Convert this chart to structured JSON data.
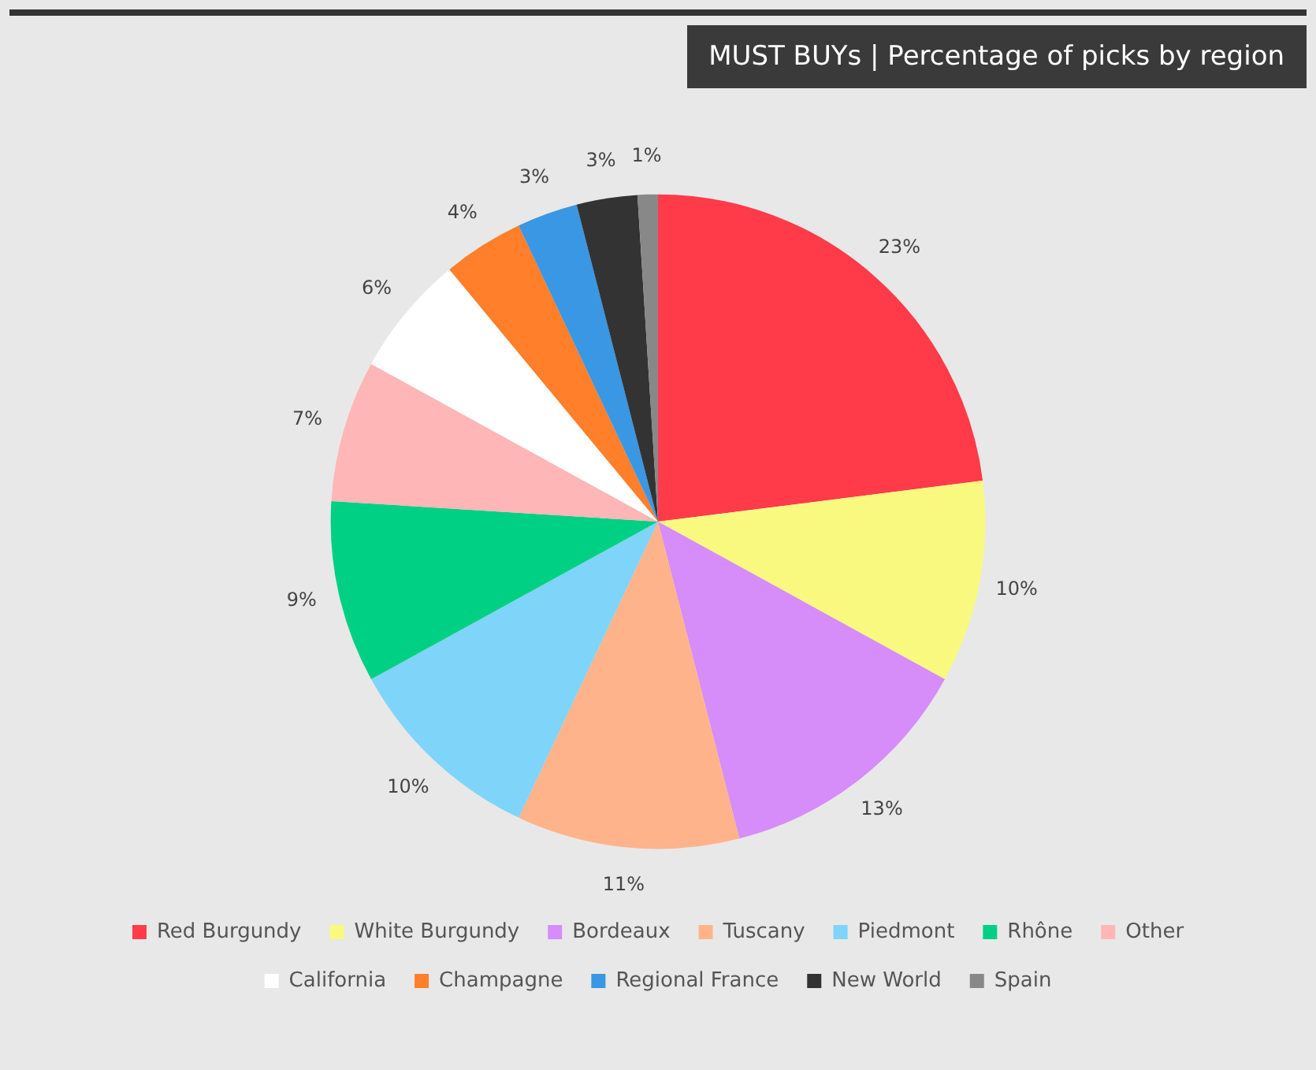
{
  "chart_data": {
    "type": "pie",
    "title": "MUST BUYs | Percentage of picks by region",
    "categories": [
      "Red Burgundy",
      "White Burgundy",
      "Bordeaux",
      "Tuscany",
      "Piedmont",
      "Rhône",
      "Other",
      "California",
      "Champagne",
      "Regional France",
      "New World",
      "Spain"
    ],
    "values": [
      23,
      10,
      13,
      11,
      10,
      9,
      7,
      6,
      4,
      3,
      3,
      1
    ],
    "colors": [
      "#ff3b4a",
      "#f9f97f",
      "#d68cf9",
      "#ffb38a",
      "#7fd4f9",
      "#00d084",
      "#ffb6b6",
      "#ffffff",
      "#ff7f2a",
      "#3a97e3",
      "#333333",
      "#888888"
    ],
    "value_labels": [
      "23%",
      "10%",
      "13%",
      "11%",
      "10%",
      "9%",
      "7%",
      "6%",
      "4%",
      "3%",
      "3%",
      "1%"
    ],
    "legend": "bottom"
  }
}
